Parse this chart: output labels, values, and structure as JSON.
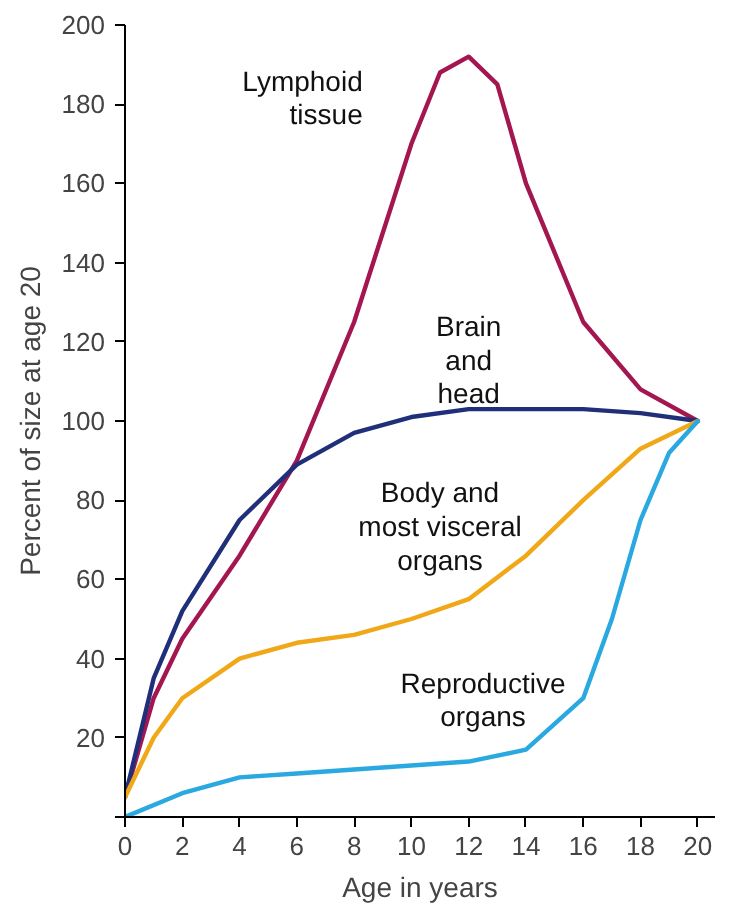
{
  "chart_data": {
    "type": "line",
    "xlabel": "Age in years",
    "ylabel": "Percent of size at age 20",
    "xlim": [
      0,
      20.6
    ],
    "xticks": [
      0,
      2,
      4,
      6,
      8,
      10,
      12,
      14,
      16,
      18,
      20
    ],
    "ylim": [
      0,
      200
    ],
    "yticks": [
      {
        "value": 0,
        "label": null
      },
      20,
      40,
      60,
      80,
      100,
      120,
      140,
      160,
      180,
      200
    ],
    "grid": false,
    "marker": "none",
    "line_style": "solid",
    "series": [
      {
        "name": "Lymphoid tissue",
        "color": "#a3164f",
        "x": [
          0,
          1,
          2,
          4,
          6,
          8,
          10,
          11,
          12,
          13,
          14,
          16,
          18,
          20
        ],
        "values": [
          5,
          30,
          45,
          66,
          90,
          125,
          170,
          188,
          192,
          185,
          160,
          125,
          108,
          100
        ]
      },
      {
        "name": "Brain and head",
        "color": "#1f2f7a",
        "x": [
          0,
          1,
          2,
          4,
          6,
          8,
          10,
          12,
          14,
          16,
          18,
          20
        ],
        "values": [
          5,
          35,
          52,
          75,
          89,
          97,
          101,
          103,
          103,
          103,
          102,
          100
        ]
      },
      {
        "name": "Body and most visceral organs",
        "color": "#f0a818",
        "x": [
          0,
          1,
          2,
          4,
          6,
          8,
          10,
          12,
          14,
          16,
          18,
          20
        ],
        "values": [
          5,
          20,
          30,
          40,
          44,
          46,
          50,
          55,
          66,
          80,
          93,
          100
        ]
      },
      {
        "name": "Reproductive organs",
        "color": "#2aa8e0",
        "x": [
          0,
          2,
          4,
          6,
          8,
          10,
          12,
          14,
          16,
          17,
          18,
          19,
          20
        ],
        "values": [
          0,
          6,
          10,
          11,
          12,
          13,
          14,
          17,
          30,
          50,
          75,
          92,
          100
        ]
      }
    ]
  }
}
